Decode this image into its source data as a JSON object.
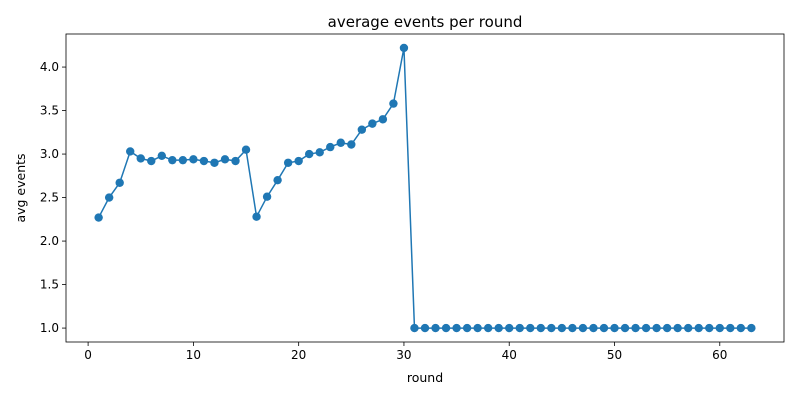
{
  "chart_data": {
    "type": "line",
    "title": "average events per round",
    "xlabel": "round",
    "ylabel": "avg events",
    "xlim": [
      -2.1,
      66.1
    ],
    "ylim": [
      0.84,
      4.38
    ],
    "xticks": [
      0,
      10,
      20,
      30,
      40,
      50,
      60
    ],
    "yticks": [
      1.0,
      1.5,
      2.0,
      2.5,
      3.0,
      3.5,
      4.0
    ],
    "xtick_labels": [
      "0",
      "10",
      "20",
      "30",
      "40",
      "50",
      "60"
    ],
    "ytick_labels": [
      "1.0",
      "1.5",
      "2.0",
      "2.5",
      "3.0",
      "3.5",
      "4.0"
    ],
    "grid": false,
    "color": "#1f77b4",
    "series": [
      {
        "x": [
          1,
          2,
          3,
          4,
          5,
          6,
          7,
          8,
          9,
          10,
          11,
          12,
          13,
          14,
          15,
          16,
          17,
          18,
          19,
          20,
          21,
          22,
          23,
          24,
          25,
          26,
          27,
          28,
          29,
          30,
          31,
          32,
          33,
          34,
          35,
          36,
          37,
          38,
          39,
          40,
          41,
          42,
          43,
          44,
          45,
          46,
          47,
          48,
          49,
          50,
          51,
          52,
          53,
          54,
          55,
          56,
          57,
          58,
          59,
          60,
          61,
          62,
          63
        ],
        "y": [
          2.27,
          2.5,
          2.67,
          3.03,
          2.95,
          2.92,
          2.98,
          2.93,
          2.93,
          2.94,
          2.92,
          2.9,
          2.94,
          2.92,
          3.05,
          2.28,
          2.51,
          2.7,
          2.9,
          2.92,
          3.0,
          3.02,
          3.08,
          3.13,
          3.11,
          3.28,
          3.35,
          3.4,
          3.58,
          4.22,
          1.0,
          1.0,
          1.0,
          1.0,
          1.0,
          1.0,
          1.0,
          1.0,
          1.0,
          1.0,
          1.0,
          1.0,
          1.0,
          1.0,
          1.0,
          1.0,
          1.0,
          1.0,
          1.0,
          1.0,
          1.0,
          1.0,
          1.0,
          1.0,
          1.0,
          1.0,
          1.0,
          1.0,
          1.0,
          1.0,
          1.0,
          1.0,
          1.0
        ]
      }
    ]
  }
}
